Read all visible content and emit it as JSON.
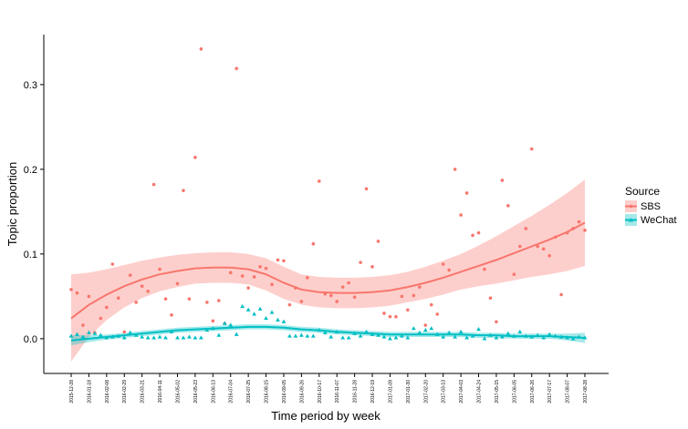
{
  "chart_data": {
    "type": "scatter",
    "xlabel": "Time period by week",
    "ylabel": "Topic proportion",
    "legend_title": "Source",
    "legend": "right",
    "categories": [
      "2015-12-28",
      null,
      null,
      "2016-01-18",
      null,
      null,
      "2016-02-08",
      null,
      null,
      "2016-02-29",
      null,
      null,
      "2016-03-21",
      null,
      null,
      "2016-04-11",
      null,
      null,
      "2016-05-02",
      null,
      null,
      "2016-05-23",
      null,
      null,
      "2016-06-13",
      null,
      null,
      "2016-07-04",
      null,
      null,
      "2016-07-25",
      null,
      null,
      "2016-08-15",
      null,
      null,
      "2016-09-05",
      null,
      null,
      "2016-09-26",
      null,
      null,
      "2016-10-17",
      null,
      null,
      "2016-11-07",
      null,
      null,
      "2016-11-28",
      null,
      null,
      "2016-12-19",
      null,
      null,
      "2017-01-09",
      null,
      null,
      "2017-01-30",
      null,
      null,
      "2017-02-20",
      null,
      null,
      "2017-03-13",
      null,
      null,
      "2017-04-03",
      null,
      null,
      "2017-04-24",
      null,
      null,
      "2017-05-15",
      null,
      null,
      "2017-06-05",
      null,
      null,
      "2017-06-26",
      null,
      null,
      "2017-07-17",
      null,
      null,
      "2017-08-07",
      null,
      null,
      "2017-08-28"
    ],
    "ylim": [
      -0.041,
      0.359
    ],
    "yticks": [
      {
        "value": 0,
        "label": "0.0"
      },
      0.1,
      0.2,
      0.3
    ],
    "series": [
      {
        "name": "SBS",
        "color": "#f8766d",
        "marker": "circle",
        "values": [
          0.058,
          0.054,
          0.016,
          0.05,
          0.007,
          0.024,
          0.037,
          0.088,
          0.048,
          0.008,
          0.075,
          0.043,
          0.062,
          0.056,
          0.182,
          0.082,
          0.047,
          0.028,
          0.065,
          0.175,
          0.047,
          0.214,
          0.342,
          0.043,
          0.021,
          0.045,
          0.018,
          0.078,
          0.319,
          0.074,
          0.06,
          0.073,
          0.085,
          0.083,
          0.064,
          0.093,
          0.092,
          0.04,
          0.06,
          0.044,
          0.072,
          0.112,
          0.186,
          0.053,
          0.051,
          0.044,
          0.061,
          0.066,
          0.049,
          0.09,
          0.177,
          0.085,
          0.115,
          0.03,
          0.026,
          0.026,
          0.05,
          0.034,
          0.051,
          0.061,
          0.016,
          0.04,
          0.029,
          0.088,
          0.081,
          0.2,
          0.146,
          0.172,
          0.122,
          0.125,
          0.082,
          0.048,
          0.02,
          0.187,
          0.157,
          0.076,
          0.109,
          0.13,
          0.224,
          0.109,
          0.106,
          0.098,
          0.12,
          0.052,
          0.125,
          0.13,
          0.138,
          0.128
        ],
        "fit": [
          0.024,
          0.04,
          0.052,
          0.062,
          0.07,
          0.076,
          0.08,
          0.083,
          0.084,
          0.084,
          0.082,
          0.076,
          0.066,
          0.058,
          0.055,
          0.054,
          0.054,
          0.055,
          0.057,
          0.061,
          0.066,
          0.072,
          0.079,
          0.086,
          0.093,
          0.101,
          0.109,
          0.117,
          0.126,
          0.137
        ],
        "fit_upper": [
          0.076,
          0.078,
          0.082,
          0.087,
          0.092,
          0.096,
          0.099,
          0.101,
          0.102,
          0.102,
          0.1,
          0.095,
          0.085,
          0.076,
          0.073,
          0.072,
          0.072,
          0.073,
          0.075,
          0.079,
          0.085,
          0.092,
          0.1,
          0.11,
          0.121,
          0.133,
          0.145,
          0.158,
          0.172,
          0.188
        ],
        "fit_lower": [
          -0.027,
          0.002,
          0.022,
          0.037,
          0.048,
          0.056,
          0.061,
          0.065,
          0.066,
          0.066,
          0.064,
          0.057,
          0.047,
          0.04,
          0.037,
          0.036,
          0.036,
          0.037,
          0.039,
          0.043,
          0.047,
          0.052,
          0.058,
          0.062,
          0.065,
          0.069,
          0.073,
          0.076,
          0.08,
          0.086
        ]
      },
      {
        "name": "WeChat",
        "color": "#00bfc4",
        "marker": "triangle",
        "values": [
          0.003,
          0.005,
          0.002,
          0.007,
          0.006,
          0.004,
          0.001,
          0.002,
          0.003,
          0.001,
          0.007,
          0.004,
          0.002,
          0.001,
          0.001,
          0.002,
          0.001,
          0.008,
          0.001,
          0.001,
          0.002,
          0.001,
          0.001,
          0.01,
          0.012,
          0.004,
          0.018,
          0.016,
          0.005,
          0.038,
          0.034,
          0.029,
          0.035,
          0.024,
          0.031,
          0.022,
          0.02,
          0.003,
          0.003,
          0.004,
          0.003,
          0.003,
          0.01,
          0.007,
          0.002,
          0.008,
          0.001,
          0.001,
          0.006,
          0.003,
          0.008,
          0.005,
          0.004,
          0.002,
          0.0,
          0.001,
          0.003,
          0.001,
          0.012,
          0.007,
          0.01,
          0.012,
          0.005,
          0.002,
          0.007,
          0.002,
          0.008,
          0.001,
          0.003,
          0.011,
          0.0,
          0.004,
          0.001,
          0.002,
          0.006,
          0.003,
          0.008,
          0.003,
          0.002,
          0.004,
          0.001,
          0.005,
          0.003,
          0.002,
          0.001,
          0.0,
          0.002,
          0.001
        ],
        "fit": [
          -0.002,
          0.0,
          0.002,
          0.004,
          0.006,
          0.008,
          0.01,
          0.011,
          0.012,
          0.013,
          0.014,
          0.014,
          0.013,
          0.011,
          0.01,
          0.008,
          0.007,
          0.006,
          0.005,
          0.005,
          0.005,
          0.005,
          0.005,
          0.004,
          0.004,
          0.003,
          0.003,
          0.003,
          0.002,
          0.001
        ],
        "fit_upper": [
          0.004,
          0.004,
          0.005,
          0.007,
          0.009,
          0.011,
          0.013,
          0.014,
          0.015,
          0.016,
          0.017,
          0.017,
          0.016,
          0.014,
          0.013,
          0.011,
          0.01,
          0.009,
          0.008,
          0.008,
          0.008,
          0.008,
          0.008,
          0.007,
          0.007,
          0.006,
          0.006,
          0.006,
          0.006,
          0.007
        ],
        "fit_lower": [
          -0.008,
          -0.004,
          -0.001,
          0.001,
          0.003,
          0.005,
          0.007,
          0.008,
          0.009,
          0.01,
          0.011,
          0.011,
          0.01,
          0.008,
          0.007,
          0.005,
          0.004,
          0.003,
          0.002,
          0.002,
          0.002,
          0.002,
          0.002,
          0.001,
          0.001,
          0.0,
          0.0,
          0.0,
          -0.002,
          -0.005
        ]
      }
    ]
  }
}
